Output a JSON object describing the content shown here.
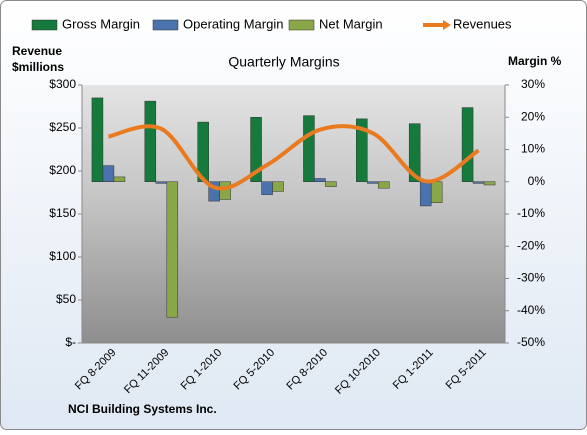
{
  "chart_data": {
    "type": "bar",
    "title": "Quarterly Margins",
    "ylabel": [
      "Revenue",
      "$millions"
    ],
    "y2label": "Margin %",
    "footnote": "NCI Building Systems Inc.",
    "legend": "top",
    "categories": [
      "FQ 8-2009",
      "FQ 11-2009",
      "FQ 1-2010",
      "FQ 5-2010",
      "FQ 8-2010",
      "FQ 10-2010",
      "FQ 1-2011",
      "FQ 5-2011"
    ],
    "series": [
      {
        "name": "Gross Margin",
        "color": "#157a3c",
        "axis": "y2",
        "values": [
          26,
          25,
          18.5,
          20,
          20.5,
          19.5,
          18,
          23
        ]
      },
      {
        "name": "Operating Margin",
        "color": "#4a72ad",
        "axis": "y2",
        "values": [
          5,
          -0.5,
          -6,
          -4,
          1,
          -0.5,
          -7.5,
          -0.5
        ]
      },
      {
        "name": "Net Margin",
        "color": "#8aa748",
        "axis": "y2",
        "values": [
          1.5,
          -42,
          -5.5,
          -3,
          -1.5,
          -2,
          -6.5,
          -1
        ]
      },
      {
        "name": "Revenues",
        "color": "#ea7a20",
        "type": "line",
        "values": [
          240,
          249,
          181,
          207,
          248,
          244,
          188,
          224
        ]
      }
    ],
    "ylim": [
      0,
      300
    ],
    "yticks": [
      {
        "value": 0,
        "label": "$-"
      },
      {
        "value": 50,
        "label": "$50"
      },
      {
        "value": 100,
        "label": "$100"
      },
      {
        "value": 150,
        "label": "$150"
      },
      {
        "value": 200,
        "label": "$200"
      },
      {
        "value": 250,
        "label": "$250"
      },
      {
        "value": 300,
        "label": "$300"
      }
    ],
    "y2lim": [
      -50,
      30
    ],
    "y2ticks": [
      {
        "value": -50,
        "label": "-50%"
      },
      {
        "value": -40,
        "label": "-40%"
      },
      {
        "value": -30,
        "label": "-30%"
      },
      {
        "value": -20,
        "label": "-20%"
      },
      {
        "value": -10,
        "label": "-10%"
      },
      {
        "value": 0,
        "label": "0%"
      },
      {
        "value": 10,
        "label": "10%"
      },
      {
        "value": 20,
        "label": "20%"
      },
      {
        "value": 30,
        "label": "30%"
      }
    ],
    "grid": false
  }
}
